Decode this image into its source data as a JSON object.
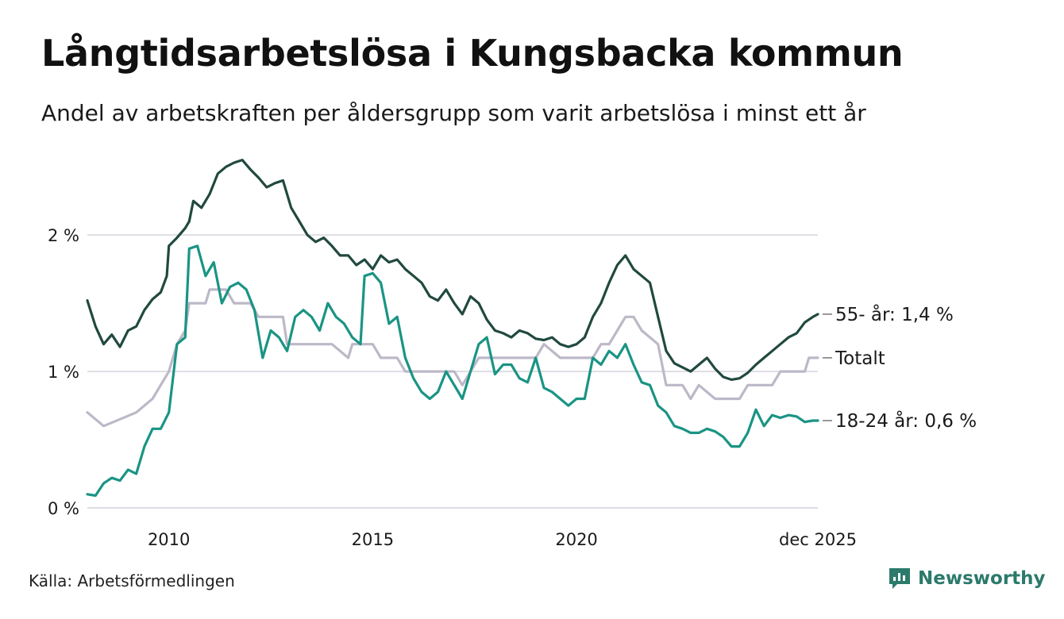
{
  "title": "Långtidsarbetslösa i Kungsbacka kommun",
  "subtitle": "Andel av arbetskraften per åldersgrupp som varit arbetslösa i minst ett år",
  "source": "Källa: Arbetsförmedlingen",
  "brand": "Newsworthy",
  "chart_data": {
    "type": "line",
    "x_range": [
      2008.0,
      2025.92
    ],
    "ylim": [
      0,
      2.6
    ],
    "y_ticks": [
      {
        "value": 0,
        "label": "0 %"
      },
      {
        "value": 1,
        "label": "1 %"
      },
      {
        "value": 2,
        "label": "2 %"
      }
    ],
    "x_ticks": [
      {
        "value": 2010,
        "label": "2010"
      },
      {
        "value": 2015,
        "label": "2015"
      },
      {
        "value": 2020,
        "label": "2020"
      },
      {
        "value": 2025.92,
        "label": "dec 2025"
      }
    ],
    "grid": true,
    "series": [
      {
        "name": "55- år",
        "end_label": "55- år: 1,4 %",
        "color": "#21493f",
        "points": [
          [
            2008.0,
            1.52
          ],
          [
            2008.2,
            1.33
          ],
          [
            2008.4,
            1.2
          ],
          [
            2008.6,
            1.27
          ],
          [
            2008.8,
            1.18
          ],
          [
            2009.0,
            1.3
          ],
          [
            2009.2,
            1.33
          ],
          [
            2009.4,
            1.45
          ],
          [
            2009.6,
            1.53
          ],
          [
            2009.8,
            1.58
          ],
          [
            2009.95,
            1.7
          ],
          [
            2010.0,
            1.92
          ],
          [
            2010.2,
            1.98
          ],
          [
            2010.4,
            2.05
          ],
          [
            2010.5,
            2.1
          ],
          [
            2010.6,
            2.25
          ],
          [
            2010.8,
            2.2
          ],
          [
            2011.0,
            2.3
          ],
          [
            2011.2,
            2.45
          ],
          [
            2011.4,
            2.5
          ],
          [
            2011.6,
            2.53
          ],
          [
            2011.8,
            2.55
          ],
          [
            2012.0,
            2.48
          ],
          [
            2012.2,
            2.42
          ],
          [
            2012.4,
            2.35
          ],
          [
            2012.6,
            2.38
          ],
          [
            2012.8,
            2.4
          ],
          [
            2013.0,
            2.2
          ],
          [
            2013.2,
            2.1
          ],
          [
            2013.4,
            2.0
          ],
          [
            2013.6,
            1.95
          ],
          [
            2013.8,
            1.98
          ],
          [
            2014.0,
            1.92
          ],
          [
            2014.2,
            1.85
          ],
          [
            2014.4,
            1.85
          ],
          [
            2014.6,
            1.78
          ],
          [
            2014.8,
            1.82
          ],
          [
            2015.0,
            1.75
          ],
          [
            2015.2,
            1.85
          ],
          [
            2015.4,
            1.8
          ],
          [
            2015.6,
            1.82
          ],
          [
            2015.8,
            1.75
          ],
          [
            2016.0,
            1.7
          ],
          [
            2016.2,
            1.65
          ],
          [
            2016.4,
            1.55
          ],
          [
            2016.6,
            1.52
          ],
          [
            2016.8,
            1.6
          ],
          [
            2017.0,
            1.5
          ],
          [
            2017.2,
            1.42
          ],
          [
            2017.4,
            1.55
          ],
          [
            2017.6,
            1.5
          ],
          [
            2017.8,
            1.38
          ],
          [
            2018.0,
            1.3
          ],
          [
            2018.2,
            1.28
          ],
          [
            2018.4,
            1.25
          ],
          [
            2018.6,
            1.3
          ],
          [
            2018.8,
            1.28
          ],
          [
            2019.0,
            1.24
          ],
          [
            2019.2,
            1.23
          ],
          [
            2019.4,
            1.25
          ],
          [
            2019.6,
            1.2
          ],
          [
            2019.8,
            1.18
          ],
          [
            2020.0,
            1.2
          ],
          [
            2020.2,
            1.25
          ],
          [
            2020.4,
            1.4
          ],
          [
            2020.6,
            1.5
          ],
          [
            2020.8,
            1.65
          ],
          [
            2021.0,
            1.78
          ],
          [
            2021.2,
            1.85
          ],
          [
            2021.4,
            1.75
          ],
          [
            2021.6,
            1.7
          ],
          [
            2021.8,
            1.65
          ],
          [
            2022.0,
            1.4
          ],
          [
            2022.2,
            1.15
          ],
          [
            2022.4,
            1.06
          ],
          [
            2022.6,
            1.03
          ],
          [
            2022.8,
            1.0
          ],
          [
            2023.0,
            1.05
          ],
          [
            2023.2,
            1.1
          ],
          [
            2023.4,
            1.02
          ],
          [
            2023.6,
            0.96
          ],
          [
            2023.8,
            0.94
          ],
          [
            2024.0,
            0.95
          ],
          [
            2024.2,
            0.99
          ],
          [
            2024.4,
            1.05
          ],
          [
            2024.6,
            1.1
          ],
          [
            2024.8,
            1.15
          ],
          [
            2025.0,
            1.2
          ],
          [
            2025.2,
            1.25
          ],
          [
            2025.4,
            1.28
          ],
          [
            2025.6,
            1.36
          ],
          [
            2025.8,
            1.4
          ],
          [
            2025.92,
            1.42
          ]
        ]
      },
      {
        "name": "Totalt",
        "end_label": "Totalt",
        "color": "#bdb8c8",
        "points": [
          [
            2008.0,
            0.7
          ],
          [
            2008.4,
            0.6
          ],
          [
            2008.8,
            0.65
          ],
          [
            2009.2,
            0.7
          ],
          [
            2009.6,
            0.8
          ],
          [
            2010.0,
            1.0
          ],
          [
            2010.2,
            1.2
          ],
          [
            2010.4,
            1.3
          ],
          [
            2010.5,
            1.5
          ],
          [
            2010.9,
            1.5
          ],
          [
            2011.0,
            1.6
          ],
          [
            2011.4,
            1.6
          ],
          [
            2011.6,
            1.5
          ],
          [
            2012.0,
            1.5
          ],
          [
            2012.2,
            1.4
          ],
          [
            2012.8,
            1.4
          ],
          [
            2012.9,
            1.2
          ],
          [
            2013.8,
            1.2
          ],
          [
            2014.0,
            1.2
          ],
          [
            2014.4,
            1.1
          ],
          [
            2014.5,
            1.2
          ],
          [
            2015.0,
            1.2
          ],
          [
            2015.2,
            1.1
          ],
          [
            2015.6,
            1.1
          ],
          [
            2015.8,
            1.0
          ],
          [
            2016.8,
            1.0
          ],
          [
            2017.0,
            1.0
          ],
          [
            2017.2,
            0.9
          ],
          [
            2017.4,
            1.0
          ],
          [
            2017.6,
            1.1
          ],
          [
            2018.0,
            1.1
          ],
          [
            2018.4,
            1.1
          ],
          [
            2018.6,
            1.1
          ],
          [
            2019.0,
            1.1
          ],
          [
            2019.2,
            1.2
          ],
          [
            2019.6,
            1.1
          ],
          [
            2020.0,
            1.1
          ],
          [
            2020.4,
            1.1
          ],
          [
            2020.6,
            1.2
          ],
          [
            2020.8,
            1.2
          ],
          [
            2021.0,
            1.3
          ],
          [
            2021.2,
            1.4
          ],
          [
            2021.4,
            1.4
          ],
          [
            2021.6,
            1.3
          ],
          [
            2022.0,
            1.2
          ],
          [
            2022.2,
            0.9
          ],
          [
            2022.6,
            0.9
          ],
          [
            2022.8,
            0.8
          ],
          [
            2023.0,
            0.9
          ],
          [
            2023.4,
            0.8
          ],
          [
            2024.0,
            0.8
          ],
          [
            2024.2,
            0.9
          ],
          [
            2024.4,
            0.9
          ],
          [
            2024.8,
            0.9
          ],
          [
            2025.0,
            1.0
          ],
          [
            2025.6,
            1.0
          ],
          [
            2025.7,
            1.1
          ],
          [
            2025.92,
            1.1
          ]
        ]
      },
      {
        "name": "18-24 år",
        "end_label": "18-24 år: 0,6 %",
        "color": "#1a9484",
        "points": [
          [
            2008.0,
            0.1
          ],
          [
            2008.2,
            0.09
          ],
          [
            2008.4,
            0.18
          ],
          [
            2008.6,
            0.22
          ],
          [
            2008.8,
            0.2
          ],
          [
            2009.0,
            0.28
          ],
          [
            2009.2,
            0.25
          ],
          [
            2009.4,
            0.45
          ],
          [
            2009.6,
            0.58
          ],
          [
            2009.8,
            0.58
          ],
          [
            2010.0,
            0.7
          ],
          [
            2010.2,
            1.2
          ],
          [
            2010.4,
            1.25
          ],
          [
            2010.5,
            1.9
          ],
          [
            2010.7,
            1.92
          ],
          [
            2010.9,
            1.7
          ],
          [
            2011.1,
            1.8
          ],
          [
            2011.3,
            1.5
          ],
          [
            2011.5,
            1.62
          ],
          [
            2011.7,
            1.65
          ],
          [
            2011.9,
            1.6
          ],
          [
            2012.1,
            1.45
          ],
          [
            2012.3,
            1.1
          ],
          [
            2012.5,
            1.3
          ],
          [
            2012.7,
            1.25
          ],
          [
            2012.9,
            1.15
          ],
          [
            2013.1,
            1.4
          ],
          [
            2013.3,
            1.45
          ],
          [
            2013.5,
            1.4
          ],
          [
            2013.7,
            1.3
          ],
          [
            2013.9,
            1.5
          ],
          [
            2014.1,
            1.4
          ],
          [
            2014.3,
            1.35
          ],
          [
            2014.5,
            1.25
          ],
          [
            2014.7,
            1.2
          ],
          [
            2014.8,
            1.7
          ],
          [
            2015.0,
            1.72
          ],
          [
            2015.2,
            1.65
          ],
          [
            2015.4,
            1.35
          ],
          [
            2015.6,
            1.4
          ],
          [
            2015.8,
            1.1
          ],
          [
            2016.0,
            0.95
          ],
          [
            2016.2,
            0.85
          ],
          [
            2016.4,
            0.8
          ],
          [
            2016.6,
            0.85
          ],
          [
            2016.8,
            1.0
          ],
          [
            2017.0,
            0.9
          ],
          [
            2017.2,
            0.8
          ],
          [
            2017.4,
            1.0
          ],
          [
            2017.6,
            1.2
          ],
          [
            2017.8,
            1.25
          ],
          [
            2018.0,
            0.98
          ],
          [
            2018.2,
            1.05
          ],
          [
            2018.4,
            1.05
          ],
          [
            2018.6,
            0.95
          ],
          [
            2018.8,
            0.92
          ],
          [
            2019.0,
            1.1
          ],
          [
            2019.2,
            0.88
          ],
          [
            2019.4,
            0.85
          ],
          [
            2019.6,
            0.8
          ],
          [
            2019.8,
            0.75
          ],
          [
            2020.0,
            0.8
          ],
          [
            2020.2,
            0.8
          ],
          [
            2020.4,
            1.1
          ],
          [
            2020.6,
            1.05
          ],
          [
            2020.8,
            1.15
          ],
          [
            2021.0,
            1.1
          ],
          [
            2021.2,
            1.2
          ],
          [
            2021.4,
            1.05
          ],
          [
            2021.6,
            0.92
          ],
          [
            2021.8,
            0.9
          ],
          [
            2022.0,
            0.75
          ],
          [
            2022.2,
            0.7
          ],
          [
            2022.4,
            0.6
          ],
          [
            2022.6,
            0.58
          ],
          [
            2022.8,
            0.55
          ],
          [
            2023.0,
            0.55
          ],
          [
            2023.2,
            0.58
          ],
          [
            2023.4,
            0.56
          ],
          [
            2023.6,
            0.52
          ],
          [
            2023.8,
            0.45
          ],
          [
            2024.0,
            0.45
          ],
          [
            2024.2,
            0.55
          ],
          [
            2024.4,
            0.72
          ],
          [
            2024.6,
            0.6
          ],
          [
            2024.8,
            0.68
          ],
          [
            2025.0,
            0.66
          ],
          [
            2025.2,
            0.68
          ],
          [
            2025.4,
            0.67
          ],
          [
            2025.6,
            0.63
          ],
          [
            2025.8,
            0.64
          ],
          [
            2025.92,
            0.64
          ]
        ]
      }
    ]
  }
}
